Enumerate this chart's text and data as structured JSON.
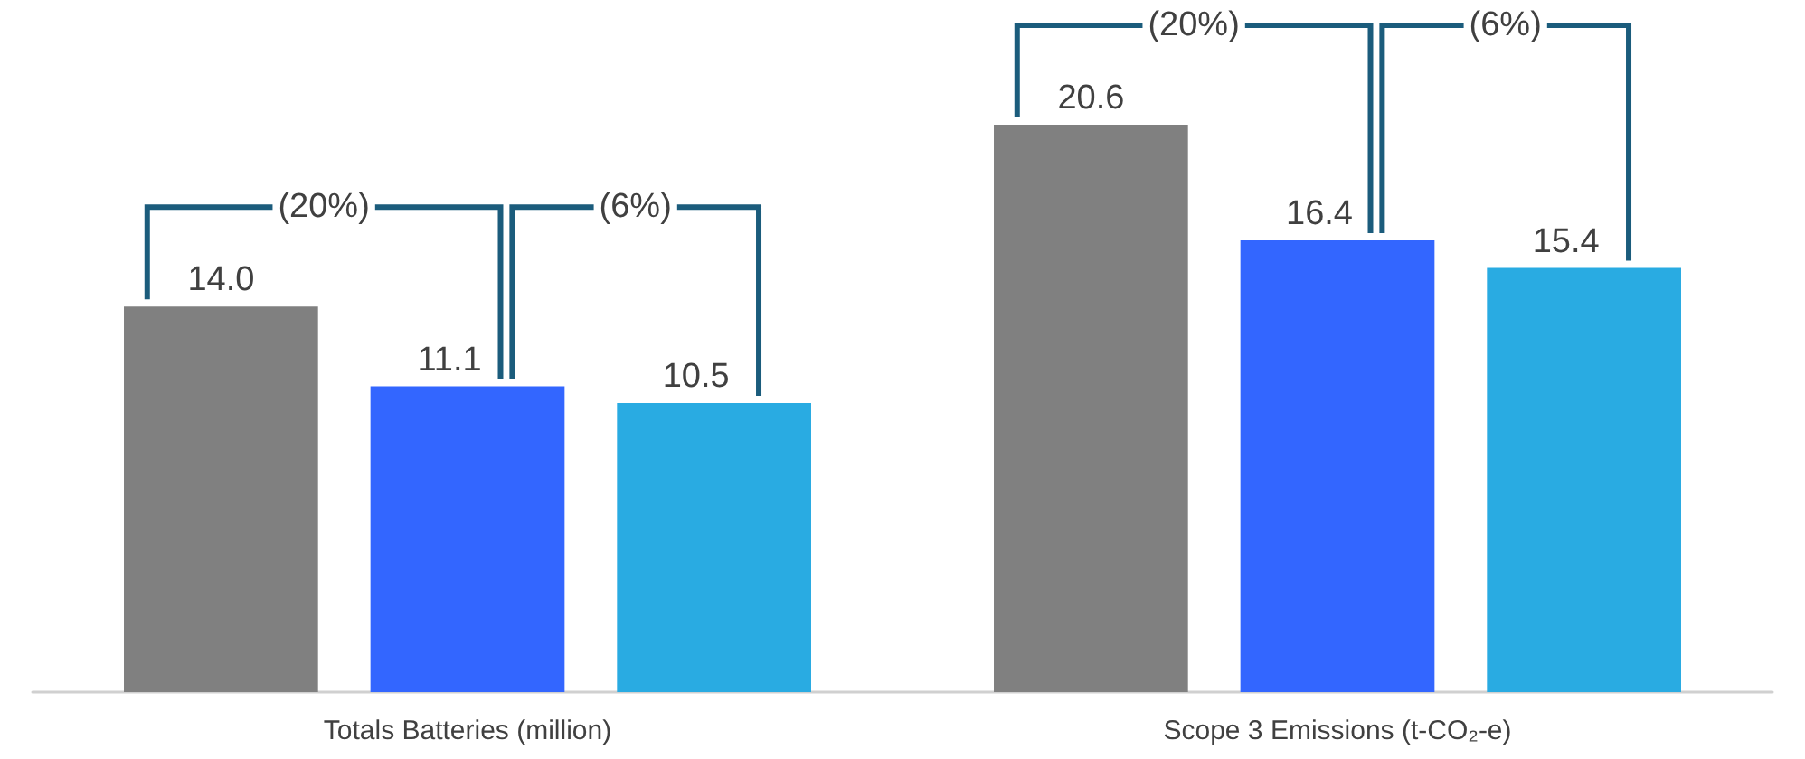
{
  "chart_data": {
    "type": "bar",
    "categories": [
      "Totals Batteries (million)",
      "Scope 3 Emissions (t-CO₂-e)"
    ],
    "series": [
      {
        "color": "#808080",
        "values": [
          14.0,
          20.6
        ],
        "value_labels": [
          "14.0",
          "20.6"
        ]
      },
      {
        "color": "#3366ff",
        "values": [
          11.1,
          16.4
        ],
        "value_labels": [
          "11.1",
          "16.4"
        ]
      },
      {
        "color": "#29abe2",
        "values": [
          10.5,
          15.4
        ],
        "value_labels": [
          "10.5",
          "15.4"
        ]
      }
    ],
    "data_labels": true,
    "annotations": [
      "(20%)",
      "(6%)",
      "(20%)",
      "(6%)"
    ]
  }
}
